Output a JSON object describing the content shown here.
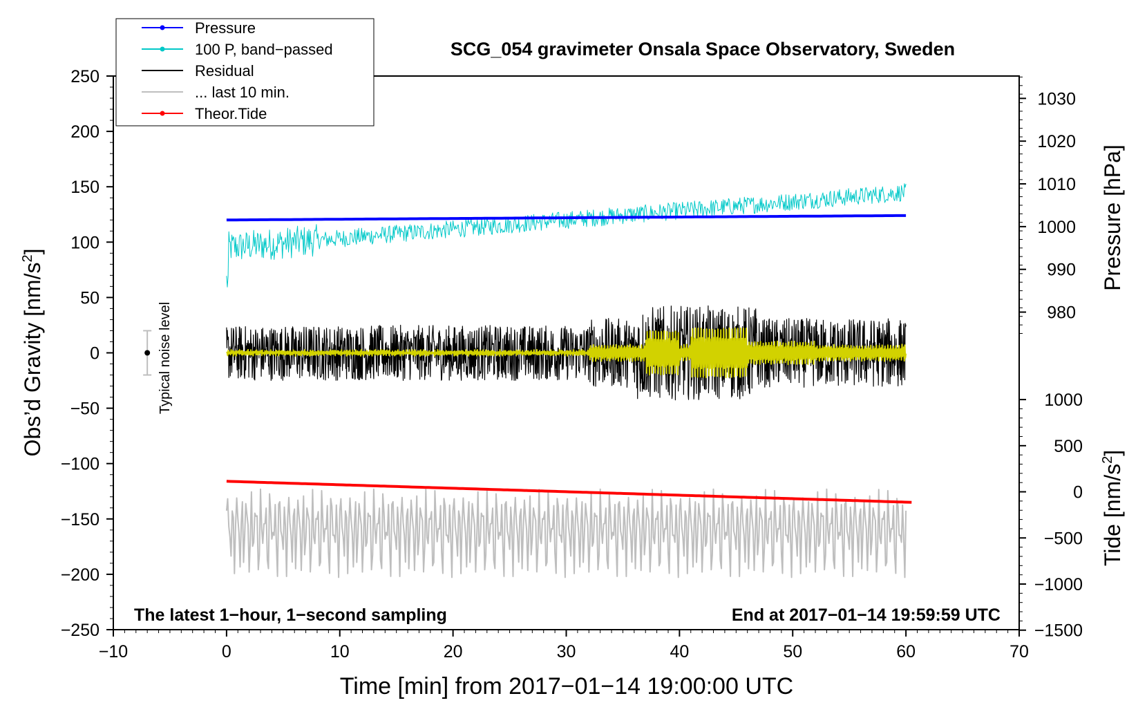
{
  "chart_data": {
    "type": "line",
    "title": "SCG_054 gravimeter Onsala Space Observatory, Sweden",
    "xlabel": "Time [min] from 2017−01−14 19:00:00 UTC",
    "ylabel_main": "Obs’d Gravity [nm/s",
    "ylabel_sup": "2",
    "ylabel_close": "]",
    "ylabel_pressure": "Pressure [hPa]",
    "ylabel_tide": "Tide [nm/s",
    "ylabel_tide_sup": "2",
    "ylabel_tide_close": "]",
    "xlim": [
      -10,
      70
    ],
    "ylim": [
      -250,
      250
    ],
    "x_ticks": [
      -10,
      0,
      10,
      20,
      30,
      40,
      50,
      60,
      70
    ],
    "x_tick_labels": [
      "−10",
      "0",
      "10",
      "20",
      "30",
      "40",
      "50",
      "60",
      "70"
    ],
    "y_ticks": [
      250,
      200,
      150,
      100,
      50,
      0,
      -50,
      -100,
      -150,
      -200,
      -250
    ],
    "y_tick_labels": [
      "250",
      "200",
      "150",
      "100",
      "50",
      "0",
      "−50",
      "−100",
      "−150",
      "−200",
      "−250"
    ],
    "pressure_ticks": [
      1030,
      1020,
      1010,
      1000,
      990,
      980
    ],
    "pressure_tick_labels": [
      "1030",
      "1020",
      "1010",
      "1000",
      "990",
      "980"
    ],
    "pressure_axis_map": {
      "ref_value": 1000,
      "ref_gravity": 114,
      "gravity_per_hPa": 3.86
    },
    "tide_ticks": [
      1000,
      500,
      0,
      -500,
      -1000,
      -1500
    ],
    "tide_tick_labels": [
      "1000",
      "500",
      "0",
      "−500",
      "−1000",
      "−1500"
    ],
    "tide_axis_map": {
      "ref_value": 0,
      "ref_gravity": -125.5,
      "gravity_per_unit": 0.0833
    },
    "annotations": {
      "left_bottom": "The latest 1−hour, 1−second sampling",
      "right_bottom": "End at 2017−01−14 19:59:59 UTC",
      "noise_label": "Typical noise level"
    },
    "noise_bar": {
      "x": -7,
      "center": 0,
      "low": -20,
      "high": 20
    },
    "legend": [
      {
        "label": "Pressure",
        "color": "#0000ff",
        "marker": true
      },
      {
        "label": "100 P, band−passed",
        "color": "#00c8c8",
        "marker": true
      },
      {
        "label": "Residual",
        "color": "#000000",
        "marker": false
      },
      {
        "label": "... last 10 min.",
        "color": "#bebebe",
        "marker": false
      },
      {
        "label": "Theor.Tide",
        "color": "#ff0000",
        "marker": true
      }
    ],
    "series": [
      {
        "name": "Pressure",
        "color": "#0000ff",
        "x_range": [
          0,
          60
        ],
        "start": 120,
        "end": 124,
        "style": "trend"
      },
      {
        "name": "100 P, band−passed",
        "color": "#00c8c8",
        "x_range": [
          0,
          60
        ],
        "start": 95,
        "end": 145,
        "spread": 8,
        "style": "noise"
      },
      {
        "name": "Residual",
        "color": "#000000",
        "x_range": [
          0,
          60
        ],
        "center": 0,
        "spread": 25,
        "style": "noise"
      },
      {
        "name": "Residual smoothed",
        "color": "#d2d200",
        "x_range": [
          0,
          60
        ],
        "center": 0,
        "spread": 5,
        "style": "smooth"
      },
      {
        "name": "... last 10 min.",
        "color": "#bebebe",
        "x_range": [
          0,
          60
        ],
        "center": -160,
        "spread": 35,
        "style": "oscillation"
      },
      {
        "name": "Theor.Tide",
        "color": "#ff0000",
        "x_range": [
          0,
          60.5
        ],
        "start": -116,
        "end": -135,
        "style": "trend"
      }
    ]
  }
}
